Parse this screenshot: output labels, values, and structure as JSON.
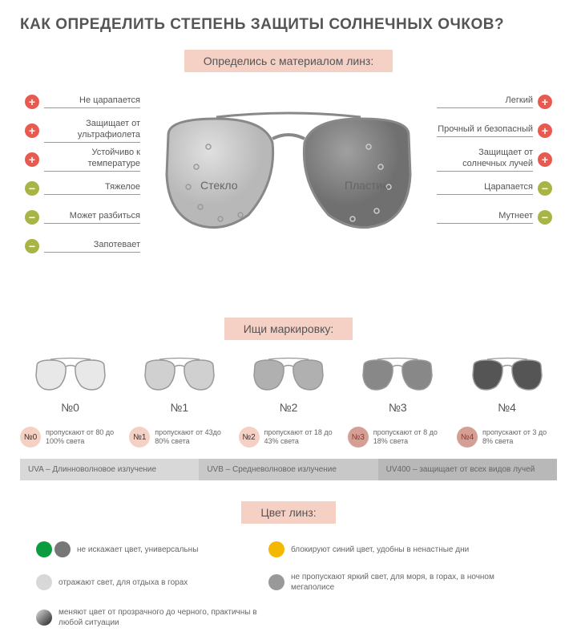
{
  "title": "КАК ОПРЕДЕЛИТЬ СТЕПЕНЬ ЗАЩИТЫ СОЛНЕЧНЫХ ОЧКОВ?",
  "sections": {
    "material": "Определись с материалом линз:",
    "marking": "Ищи маркировку:",
    "lensColor": "Цвет линз:"
  },
  "lensLabels": {
    "glass": "Стекло",
    "plastic": "Пластик"
  },
  "glassFeatures": [
    {
      "text": "Не царапается",
      "type": "plus"
    },
    {
      "text": "Защищает от ультрафиолета",
      "type": "plus"
    },
    {
      "text": "Устойчиво к температуре",
      "type": "plus"
    },
    {
      "text": "Тяжелое",
      "type": "minus"
    },
    {
      "text": "Может разбиться",
      "type": "minus"
    },
    {
      "text": "Запотевает",
      "type": "minus"
    }
  ],
  "plasticFeatures": [
    {
      "text": "Легкий",
      "type": "plus"
    },
    {
      "text": "Прочный и безопасный",
      "type": "plus"
    },
    {
      "text": "Защищает от солнечных лучей",
      "type": "plus"
    },
    {
      "text": "Царапается",
      "type": "minus"
    },
    {
      "text": "Мутнеет",
      "type": "minus"
    }
  ],
  "markings": [
    {
      "num": "№0",
      "badge": "№0",
      "desc": "пропускают от 80 до 100% света",
      "tint": "#e8e8e8"
    },
    {
      "num": "№1",
      "badge": "№1",
      "desc": "пропускают от 43до 80% света",
      "tint": "#d0d0d0"
    },
    {
      "num": "№2",
      "badge": "№2",
      "desc": "пропускают от 18 до 43% света",
      "tint": "#b0b0b0"
    },
    {
      "num": "№3",
      "badge": "№3",
      "desc": "пропускают от 8 до 18% света",
      "tint": "#888888"
    },
    {
      "num": "№4",
      "badge": "№4",
      "desc": "пропускают от 3 до 8% света",
      "tint": "#555555"
    }
  ],
  "uvInfo": [
    "UVA – Длинноволновое излучение",
    "UVB – Средневолновое излучение",
    "UV400 – защищает от всех видов лучей"
  ],
  "lensColors": [
    {
      "dots": [
        "#0a9d3e",
        "#777"
      ],
      "text": "не искажает цвет, универсальны",
      "w": "narrow"
    },
    {
      "dots": [
        "#f5b800"
      ],
      "text": "блокируют синий цвет, удобны в ненастные дни",
      "w": "narrow"
    },
    {
      "dots": [
        "#d8d8d8"
      ],
      "text": "отражают свет, для отдыха в горах",
      "w": "narrow"
    },
    {
      "dots": [
        "#999"
      ],
      "text": "не пропускают яркий свет, для моря, в горах, в ночном мегаполисе",
      "w": "wide"
    },
    {
      "dots": [
        "gradient"
      ],
      "text": "меняют цвет от прозрачного до черного, практичны в любой ситуации",
      "w": "wide"
    }
  ],
  "colors": {
    "plusBadge": "#e85a4f",
    "minusBadge": "#a8b545",
    "banner": "#f5d0c5",
    "glassLens": "#c8c8c8",
    "plasticLens": "#888888"
  }
}
